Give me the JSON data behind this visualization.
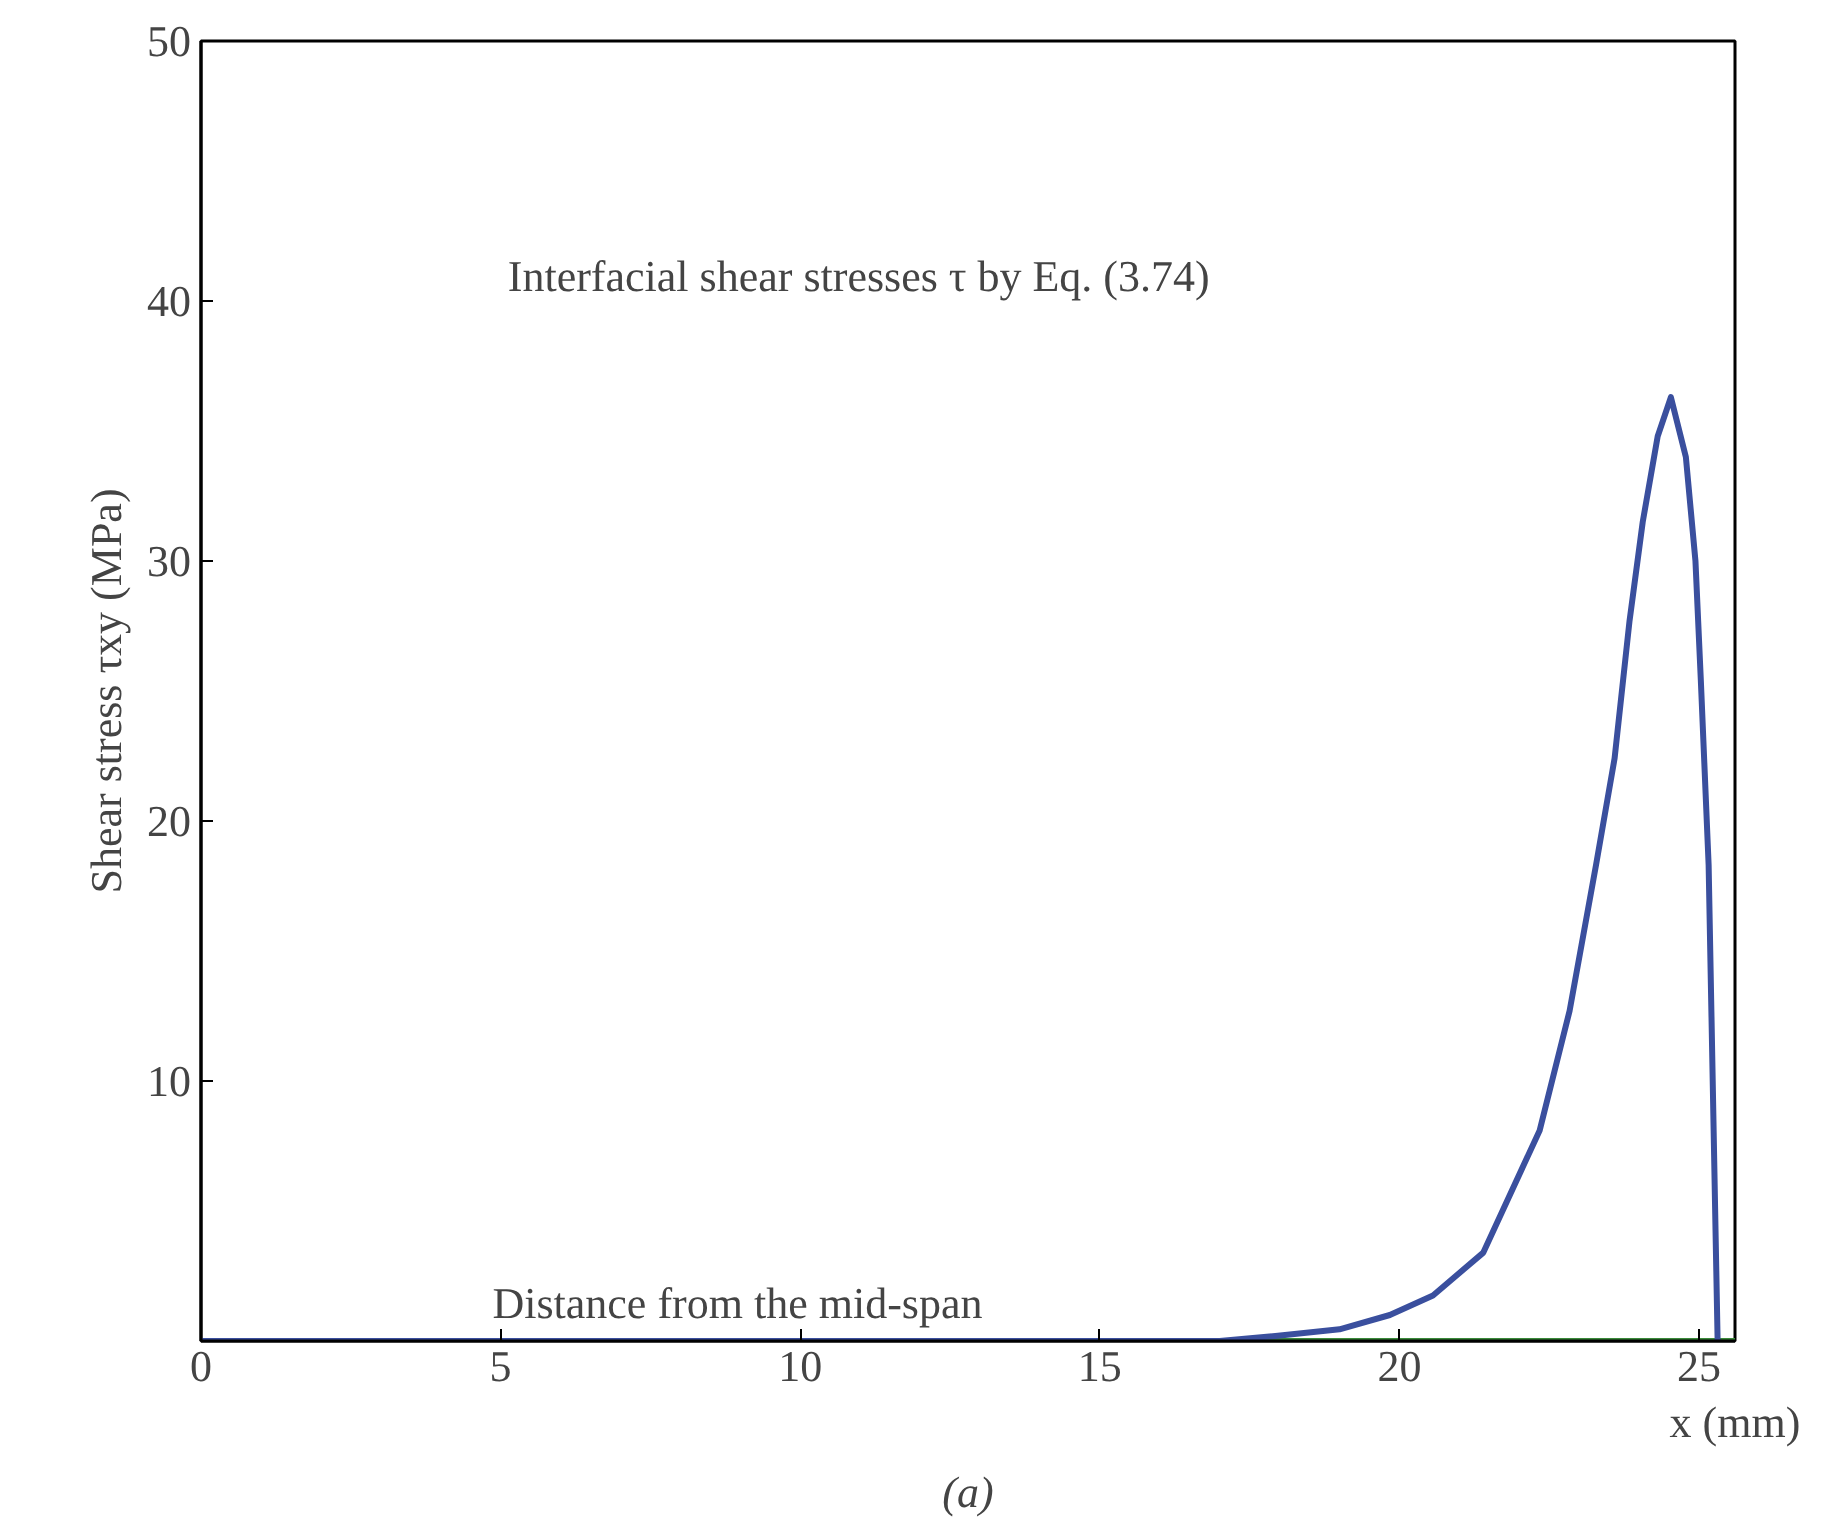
{
  "chart_data": {
    "type": "line",
    "xlabel": "x (mm)",
    "ylabel": "Shear stress τxy (MPa)",
    "annotations": [
      "Interfacial shear stresses τ by Eq. (3.74)",
      "Distance from the mid-span",
      "(a)"
    ],
    "series": [
      {
        "color": "#3a8a3a",
        "x": [
          17.5,
          25.6
        ],
        "values": [
          0,
          0
        ]
      },
      {
        "color": "#3a4f9e",
        "x": [
          0,
          5,
          10,
          15,
          17.0,
          17.97,
          19.0,
          19.84,
          20.56,
          21.4,
          22.34,
          22.84,
          23.28,
          23.59,
          23.84,
          24.06,
          24.31,
          24.53,
          24.78,
          24.94,
          25.03,
          25.16,
          25.31
        ],
        "values": [
          0,
          0,
          0,
          0,
          0,
          0.2,
          0.45,
          1.0,
          1.75,
          3.4,
          8.1,
          12.7,
          18.3,
          22.4,
          27.7,
          31.5,
          34.8,
          36.3,
          34.0,
          30.0,
          25.4,
          18.3,
          0
        ]
      }
    ],
    "xlim": [
      0,
      25.6
    ],
    "ylim": [
      0,
      50
    ],
    "xticks": [
      0,
      5,
      10,
      15,
      20,
      25
    ],
    "yticks": [
      10,
      20,
      30,
      40,
      50
    ],
    "grid": false,
    "marker": "none",
    "line_style": "solid"
  }
}
